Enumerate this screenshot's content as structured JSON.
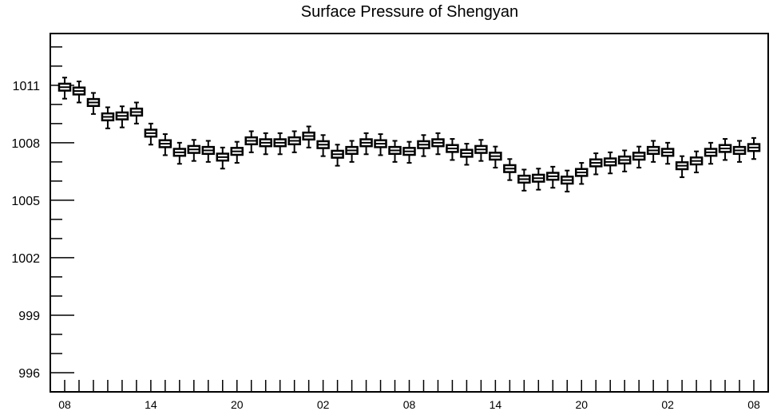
{
  "chart_data": {
    "type": "boxplot",
    "title": "Surface Pressure of Shengyan",
    "xlabel": "",
    "ylabel": "",
    "ylim": [
      995,
      1013.7
    ],
    "grid": false,
    "yticks": [
      996,
      999,
      1002,
      1005,
      1008,
      1011
    ],
    "ytick_labels": [
      "996",
      "999",
      "1002",
      "1005",
      "1008",
      "1011"
    ],
    "xtick_labels": [
      "08",
      "14",
      "20",
      "02",
      "08",
      "14",
      "20",
      "02",
      "08"
    ],
    "x_hours": [
      0,
      6,
      12,
      18,
      24,
      30,
      36,
      42,
      48
    ],
    "boxes": [
      {
        "hour": 0,
        "median": 1010.9
      },
      {
        "hour": 1,
        "median": 1010.7
      },
      {
        "hour": 2,
        "median": 1010.1
      },
      {
        "hour": 3,
        "median": 1009.35
      },
      {
        "hour": 4,
        "median": 1009.4
      },
      {
        "hour": 5,
        "median": 1009.6
      },
      {
        "hour": 6,
        "median": 1008.5
      },
      {
        "hour": 7,
        "median": 1007.95
      },
      {
        "hour": 8,
        "median": 1007.5
      },
      {
        "hour": 9,
        "median": 1007.65
      },
      {
        "hour": 10,
        "median": 1007.6
      },
      {
        "hour": 11,
        "median": 1007.25
      },
      {
        "hour": 12,
        "median": 1007.55
      },
      {
        "hour": 13,
        "median": 1008.1
      },
      {
        "hour": 14,
        "median": 1008.0
      },
      {
        "hour": 15,
        "median": 1008.0
      },
      {
        "hour": 16,
        "median": 1008.1
      },
      {
        "hour": 17,
        "median": 1008.35
      },
      {
        "hour": 18,
        "median": 1007.9
      },
      {
        "hour": 19,
        "median": 1007.4
      },
      {
        "hour": 20,
        "median": 1007.6
      },
      {
        "hour": 21,
        "median": 1008.0
      },
      {
        "hour": 22,
        "median": 1007.95
      },
      {
        "hour": 23,
        "median": 1007.6
      },
      {
        "hour": 24,
        "median": 1007.55
      },
      {
        "hour": 25,
        "median": 1007.9
      },
      {
        "hour": 26,
        "median": 1008.0
      },
      {
        "hour": 27,
        "median": 1007.7
      },
      {
        "hour": 28,
        "median": 1007.45
      },
      {
        "hour": 29,
        "median": 1007.65
      },
      {
        "hour": 30,
        "median": 1007.3
      },
      {
        "hour": 31,
        "median": 1006.65
      },
      {
        "hour": 32,
        "median": 1006.1
      },
      {
        "hour": 33,
        "median": 1006.15
      },
      {
        "hour": 34,
        "median": 1006.25
      },
      {
        "hour": 35,
        "median": 1006.05
      },
      {
        "hour": 36,
        "median": 1006.45
      },
      {
        "hour": 37,
        "median": 1006.95
      },
      {
        "hour": 38,
        "median": 1007.0
      },
      {
        "hour": 39,
        "median": 1007.1
      },
      {
        "hour": 40,
        "median": 1007.3
      },
      {
        "hour": 41,
        "median": 1007.6
      },
      {
        "hour": 42,
        "median": 1007.5
      },
      {
        "hour": 43,
        "median": 1006.8
      },
      {
        "hour": 44,
        "median": 1007.05
      },
      {
        "hour": 45,
        "median": 1007.5
      },
      {
        "hour": 46,
        "median": 1007.7
      },
      {
        "hour": 47,
        "median": 1007.6
      },
      {
        "hour": 48,
        "median": 1007.75
      }
    ],
    "box_half_height": 0.18,
    "whisker_low_offset": 0.6,
    "whisker_high_offset": 0.5
  }
}
